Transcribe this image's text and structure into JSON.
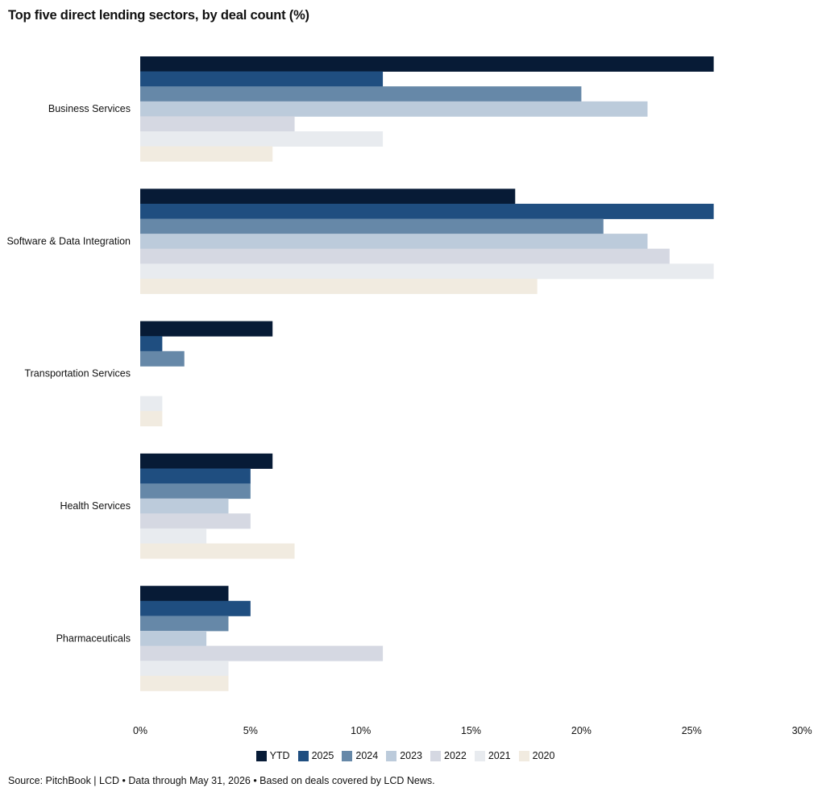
{
  "chart_data": {
    "type": "bar",
    "orientation": "horizontal",
    "title": "Top five direct lending sectors, by deal count (%)",
    "categories": [
      "Business Services",
      "Software & Data Integration",
      "Transportation Services",
      "Health Services",
      "Pharmaceuticals"
    ],
    "series": [
      {
        "name": "YTD",
        "color": "#071b36",
        "values": [
          26,
          17,
          6,
          6,
          4
        ]
      },
      {
        "name": "2025",
        "color": "#1f4e80",
        "values": [
          11,
          26,
          1,
          5,
          5
        ]
      },
      {
        "name": "2024",
        "color": "#6688a8",
        "values": [
          20,
          21,
          2,
          5,
          4
        ]
      },
      {
        "name": "2023",
        "color": "#bccbdb",
        "values": [
          23,
          23,
          0,
          4,
          3
        ]
      },
      {
        "name": "2022",
        "color": "#d5d8e2",
        "values": [
          7,
          24,
          0,
          5,
          11
        ]
      },
      {
        "name": "2021",
        "color": "#e8ebef",
        "values": [
          11,
          26,
          1,
          3,
          4
        ]
      },
      {
        "name": "2020",
        "color": "#f1ebe0",
        "values": [
          6,
          18,
          1,
          7,
          4
        ]
      }
    ],
    "xlim": [
      0,
      30
    ],
    "xticks": [
      0,
      5,
      10,
      15,
      20,
      25,
      30
    ],
    "tick_suffix": "%",
    "xlabel": "",
    "ylabel": "",
    "grid": false,
    "legend_position": "bottom"
  },
  "footer": {
    "source": "Source: PitchBook | LCD • Data through May 31, 2026 • Based on deals covered by LCD News."
  }
}
